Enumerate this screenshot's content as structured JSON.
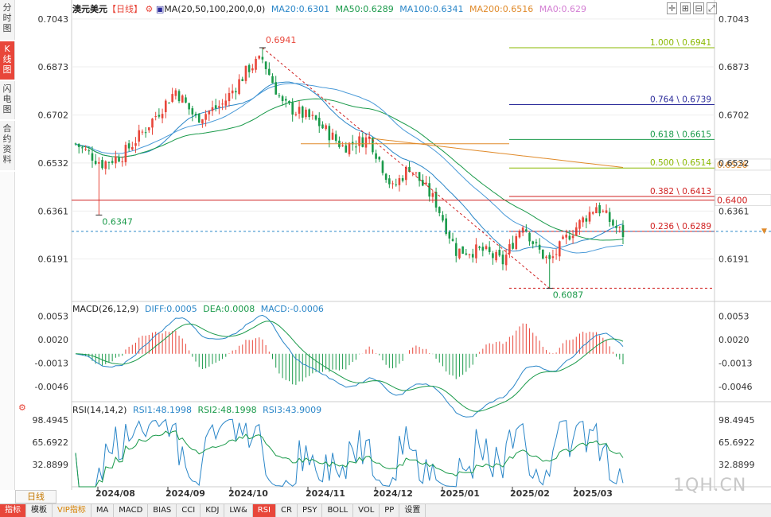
{
  "side_tabs": [
    {
      "label": "分\n时\n图",
      "active": false
    },
    {
      "label": "K\n线\n图",
      "active": true
    },
    {
      "label": "闪\n电\n图",
      "active": false
    },
    {
      "label": "合\n约\n资\n料",
      "active": false
    }
  ],
  "header": {
    "symbol": "澳元美元",
    "period": "【日线】",
    "ma_params": "MA(20,50,100,200,0,0)",
    "ma20": "MA20:0.6301",
    "ma50": "MA50:0.6289",
    "ma100": "MA100:0.6341",
    "ma200": "MA200:0.6516",
    "ma0": "MA0:0.629"
  },
  "macd_header": {
    "title": "MACD(26,12,9)",
    "diff": "DIFF:0.0005",
    "dea": "DEA:0.0008",
    "macd": "MACD:-0.0006"
  },
  "rsi_header": {
    "title": "RSI(14,14,2)",
    "rsi1": "RSI1:48.1998",
    "rsi2": "RSI2:48.1998",
    "rsi3": "RSI3:43.9009"
  },
  "colors": {
    "up": "#e8463a",
    "down": "#1a9a4a",
    "ma20": "#1a9a4a",
    "ma50": "#2a9d6c",
    "ma100": "#2a86c8",
    "ma200": "#e08a2a",
    "ma0": "#d37ed3",
    "diff": "#2a86c8",
    "dea": "#1a9a4a"
  },
  "bottom_tabs": [
    "指标",
    "模板",
    "VIP指标",
    "MA",
    "MACD",
    "BIAS",
    "CCI",
    "KDJ",
    "LW&",
    "RSI",
    "CR",
    "PSY",
    "BOLL",
    "VOL",
    "PP",
    "设置"
  ],
  "period_button": "日线",
  "watermark": "1QH.CN",
  "chart_data": {
    "type": "candlestick",
    "title": "澳元美元【日线】",
    "price_ticks": [
      "0.7043",
      "0.6873",
      "0.6702",
      "0.6532",
      "0.6361",
      "0.6191"
    ],
    "price_range": [
      0.6043,
      0.7068
    ],
    "x_labels": [
      "2024/08",
      "2024/09",
      "2024/10",
      "2024/11",
      "2024/12",
      "2025/01",
      "2025/02",
      "2025/03"
    ],
    "ohlc": {
      "count": 165,
      "key_closes": [
        {
          "i": 0,
          "c": 0.66
        },
        {
          "i": 8,
          "c": 0.653
        },
        {
          "i": 14,
          "c": 0.656
        },
        {
          "i": 20,
          "c": 0.664
        },
        {
          "i": 30,
          "c": 0.679
        },
        {
          "i": 36,
          "c": 0.669
        },
        {
          "i": 44,
          "c": 0.674
        },
        {
          "i": 52,
          "c": 0.687
        },
        {
          "i": 56,
          "c": 0.69
        },
        {
          "i": 62,
          "c": 0.674
        },
        {
          "i": 72,
          "c": 0.668
        },
        {
          "i": 80,
          "c": 0.659
        },
        {
          "i": 88,
          "c": 0.662
        },
        {
          "i": 95,
          "c": 0.644
        },
        {
          "i": 100,
          "c": 0.652
        },
        {
          "i": 108,
          "c": 0.639
        },
        {
          "i": 114,
          "c": 0.622
        },
        {
          "i": 122,
          "c": 0.622
        },
        {
          "i": 128,
          "c": 0.618
        },
        {
          "i": 134,
          "c": 0.632
        },
        {
          "i": 138,
          "c": 0.623
        },
        {
          "i": 142,
          "c": 0.618
        },
        {
          "i": 148,
          "c": 0.628
        },
        {
          "i": 156,
          "c": 0.638
        },
        {
          "i": 162,
          "c": 0.63
        },
        {
          "i": 164,
          "c": 0.628
        }
      ]
    },
    "annotations": [
      {
        "text": "0.6941",
        "value": 0.6941,
        "i": 56,
        "type": "high"
      },
      {
        "text": "0.6347",
        "value": 0.6347,
        "i": 7,
        "type": "low"
      },
      {
        "text": "0.6087",
        "value": 0.6087,
        "i": 142,
        "type": "low"
      }
    ],
    "fibonacci": [
      {
        "text": "1.000 \\ 0.6941",
        "value": 0.6941,
        "color": "#8ab800"
      },
      {
        "text": "0.764 \\ 0.6739",
        "value": 0.6739,
        "color": "#2a2a9a"
      },
      {
        "text": "0.618 \\ 0.6615",
        "value": 0.6615,
        "color": "#1a9a4a"
      },
      {
        "text": "0.500 \\ 0.6514",
        "value": 0.6514,
        "color": "#8ab800"
      },
      {
        "text": "0.382 \\ 0.6413",
        "value": 0.6413,
        "color": "#d02020"
      },
      {
        "text": "0.236 \\ 0.6289",
        "value": 0.6289,
        "color": "#d02020"
      }
    ],
    "level_labels": [
      {
        "text": "0.6526",
        "value": 0.6526,
        "color": "#e08a2a"
      },
      {
        "text": "0.6400",
        "value": 0.64,
        "color": "#d02020"
      }
    ],
    "macd": {
      "ticks": [
        "0.0053",
        "0.0020",
        "-0.0013",
        "-0.0046"
      ],
      "range": [
        -0.0062,
        0.0066
      ]
    },
    "rsi": {
      "ticks": [
        "98.4945",
        "65.6922",
        "32.8899"
      ],
      "range": [
        0,
        108
      ]
    }
  }
}
